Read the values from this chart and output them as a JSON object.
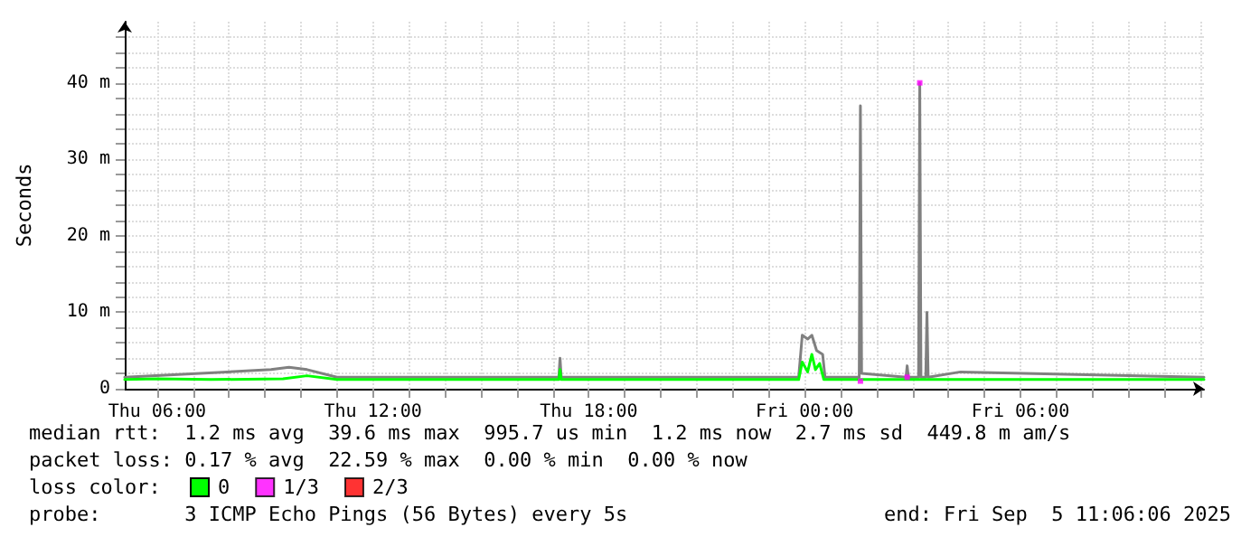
{
  "chart_data": {
    "type": "line",
    "ylabel": "Seconds",
    "xlim": [
      "2025-09-04T05:06",
      "2025-09-05T11:06"
    ],
    "xticks": [
      {
        "value": "2025-09-04T06:00",
        "label": "Thu 06:00"
      },
      {
        "value": "2025-09-04T07:00",
        "label": null
      },
      {
        "value": "2025-09-04T08:00",
        "label": null
      },
      {
        "value": "2025-09-04T09:00",
        "label": null
      },
      {
        "value": "2025-09-04T10:00",
        "label": null
      },
      {
        "value": "2025-09-04T11:00",
        "label": null
      },
      {
        "value": "2025-09-04T12:00",
        "label": "Thu 12:00"
      },
      {
        "value": "2025-09-04T13:00",
        "label": null
      },
      {
        "value": "2025-09-04T14:00",
        "label": null
      },
      {
        "value": "2025-09-04T15:00",
        "label": null
      },
      {
        "value": "2025-09-04T16:00",
        "label": null
      },
      {
        "value": "2025-09-04T17:00",
        "label": null
      },
      {
        "value": "2025-09-04T18:00",
        "label": "Thu 18:00"
      },
      {
        "value": "2025-09-04T19:00",
        "label": null
      },
      {
        "value": "2025-09-04T20:00",
        "label": null
      },
      {
        "value": "2025-09-04T21:00",
        "label": null
      },
      {
        "value": "2025-09-04T22:00",
        "label": null
      },
      {
        "value": "2025-09-04T23:00",
        "label": null
      },
      {
        "value": "2025-09-05T00:00",
        "label": "Fri 00:00"
      },
      {
        "value": "2025-09-05T01:00",
        "label": null
      },
      {
        "value": "2025-09-05T02:00",
        "label": null
      },
      {
        "value": "2025-09-05T03:00",
        "label": null
      },
      {
        "value": "2025-09-05T04:00",
        "label": null
      },
      {
        "value": "2025-09-05T05:00",
        "label": null
      },
      {
        "value": "2025-09-05T06:00",
        "label": "Fri 06:00"
      },
      {
        "value": "2025-09-05T07:00",
        "label": null
      },
      {
        "value": "2025-09-05T08:00",
        "label": null
      },
      {
        "value": "2025-09-05T09:00",
        "label": null
      },
      {
        "value": "2025-09-05T10:00",
        "label": null
      },
      {
        "value": "2025-09-05T11:00",
        "label": null
      }
    ],
    "ylim": [
      0,
      48
    ],
    "yticks": [
      0,
      {
        "value": 2,
        "label": null
      },
      {
        "value": 4,
        "label": null
      },
      {
        "value": 6,
        "label": null
      },
      {
        "value": 8,
        "label": null
      },
      {
        "value": 10,
        "label": "10 m"
      },
      {
        "value": 12,
        "label": null
      },
      {
        "value": 14,
        "label": null
      },
      {
        "value": 16,
        "label": null
      },
      {
        "value": 18,
        "label": null
      },
      {
        "value": 20,
        "label": "20 m"
      },
      {
        "value": 22,
        "label": null
      },
      {
        "value": 24,
        "label": null
      },
      {
        "value": 26,
        "label": null
      },
      {
        "value": 28,
        "label": null
      },
      {
        "value": 30,
        "label": "30 m"
      },
      {
        "value": 32,
        "label": null
      },
      {
        "value": 34,
        "label": null
      },
      {
        "value": 36,
        "label": null
      },
      {
        "value": 38,
        "label": null
      },
      {
        "value": 40,
        "label": "40 m"
      },
      {
        "value": 42,
        "label": null
      },
      {
        "value": 44,
        "label": null
      },
      {
        "value": 46,
        "label": null
      }
    ],
    "grid": true,
    "legend": "bottom left",
    "marker": "none",
    "line_style": "solid",
    "series": [
      {
        "color": "#808080",
        "x": [
          "2025-09-04T05:06",
          "2025-09-04T09:10",
          "2025-09-04T09:40",
          "2025-09-04T10:10",
          "2025-09-04T11:00",
          "2025-09-04T17:10",
          "2025-09-04T17:12",
          "2025-09-04T17:14",
          "2025-09-04T23:50",
          "2025-09-04T23:56",
          "2025-09-05T00:05",
          "2025-09-05T00:12",
          "2025-09-05T00:20",
          "2025-09-05T00:30",
          "2025-09-05T00:34",
          "2025-09-05T01:31",
          "2025-09-05T01:33",
          "2025-09-05T01:35",
          "2025-09-05T02:49",
          "2025-09-05T02:51",
          "2025-09-05T02:53",
          "2025-09-05T03:10",
          "2025-09-05T03:12",
          "2025-09-05T03:14",
          "2025-09-05T03:22",
          "2025-09-05T03:24",
          "2025-09-05T03:26",
          "2025-09-05T04:20",
          "2025-09-05T11:06"
        ],
        "values": [
          1.5,
          2.5,
          2.8,
          2.5,
          1.5,
          1.5,
          4,
          1.5,
          1.5,
          7,
          6.5,
          7,
          5,
          4.5,
          1.5,
          1.5,
          37,
          2,
          1.5,
          3,
          1.5,
          1.5,
          40,
          1.5,
          1.5,
          10,
          1.5,
          2.2,
          1.5
        ]
      },
      {
        "name": "0",
        "color": "#00ff00",
        "x": [
          "2025-09-04T05:06",
          "2025-09-04T06:00",
          "2025-09-04T07:30",
          "2025-09-04T09:30",
          "2025-09-04T10:10",
          "2025-09-04T11:00",
          "2025-09-04T14:00",
          "2025-09-04T17:10",
          "2025-09-04T17:12",
          "2025-09-04T17:14",
          "2025-09-04T20:00",
          "2025-09-04T23:50",
          "2025-09-04T23:56",
          "2025-09-05T00:05",
          "2025-09-05T00:12",
          "2025-09-05T00:18",
          "2025-09-05T00:25",
          "2025-09-05T00:32",
          "2025-09-05T01:30",
          "2025-09-05T02:51",
          "2025-09-05T03:12",
          "2025-09-05T05:00",
          "2025-09-05T08:00",
          "2025-09-05T11:06"
        ],
        "values": [
          1.2,
          1.3,
          1.2,
          1.3,
          1.7,
          1.2,
          1.2,
          1.2,
          2.5,
          1.2,
          1.2,
          1.2,
          3.5,
          2.2,
          4.5,
          2.5,
          3.3,
          1.2,
          1.2,
          1.2,
          1.2,
          1.2,
          1.2,
          1.2
        ]
      },
      {
        "name": "1/3",
        "type": "scatter",
        "marker": "square",
        "color": "#ff00ff",
        "x": [
          "2025-09-05T01:33",
          "2025-09-05T02:51",
          "2025-09-05T03:12"
        ],
        "values": [
          1,
          1.5,
          40
        ]
      },
      {
        "name": "2/3",
        "type": "scatter",
        "marker": "square",
        "color": "#ff0000"
      }
    ],
    "annotations": [
      "median rtt:  1.2 ms avg  39.6 ms max  995.7 us min  1.2 ms now  2.7 ms sd  449.8 m am/s",
      "packet loss: 0.17 % avg  22.59 % max  0.00 % min  0.00 % now",
      "loss color:",
      "probe:       3 ICMP Echo Pings (56 Bytes) every 5s",
      "end: Fri Sep  5 11:06:06 2025"
    ]
  }
}
